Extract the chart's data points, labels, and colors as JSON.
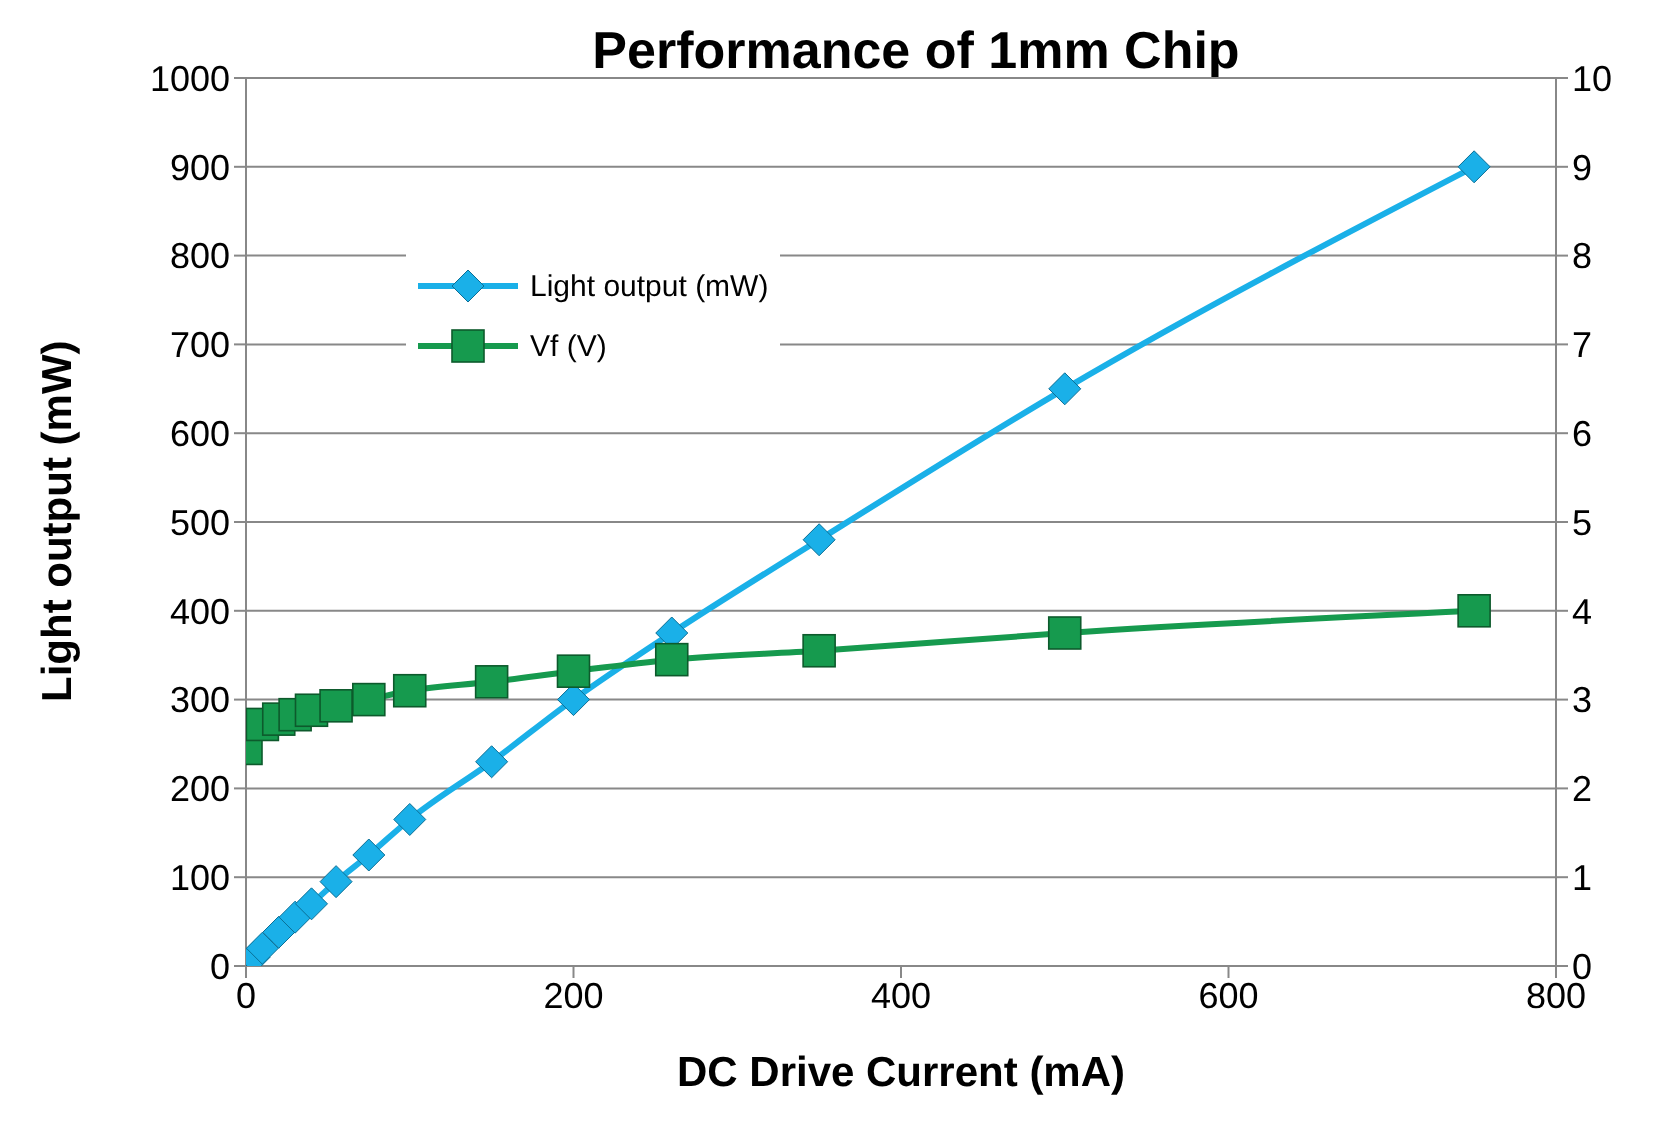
{
  "chart_data": {
    "type": "line",
    "title": "Performance of 1mm Chip",
    "xlabel": "DC Drive Current (mA)",
    "ylabel": "Light output (mW)",
    "xlim": [
      0,
      800
    ],
    "xticks": [
      0,
      200,
      400,
      600,
      800
    ],
    "ylim": [
      0,
      1000
    ],
    "yticks": [
      0,
      100,
      200,
      300,
      400,
      500,
      600,
      700,
      800,
      900,
      1000
    ],
    "y2lim": [
      0,
      10
    ],
    "y2ticks": [
      0,
      1,
      2,
      3,
      4,
      5,
      6,
      7,
      8,
      9,
      10
    ],
    "grid": "y",
    "legend": "top left",
    "series": [
      {
        "name": "Light output (mW)",
        "color": "#1ab0e8",
        "marker": "diamond",
        "x": [
          0,
          5,
          10,
          20,
          30,
          40,
          55,
          75,
          100,
          150,
          200,
          260,
          350,
          500,
          750
        ],
        "values": [
          2,
          10,
          20,
          38,
          55,
          70,
          95,
          125,
          165,
          230,
          300,
          375,
          480,
          650,
          900
        ]
      },
      {
        "name": "Vf (V)",
        "color": "#169a4e",
        "marker": "square",
        "axis": "y2",
        "x": [
          0,
          10,
          20,
          30,
          40,
          55,
          75,
          100,
          150,
          200,
          260,
          350,
          500,
          750
        ],
        "values": [
          2.45,
          2.72,
          2.78,
          2.83,
          2.88,
          2.93,
          3.0,
          3.1,
          3.2,
          3.32,
          3.45,
          3.55,
          3.75,
          4.0
        ]
      }
    ]
  }
}
